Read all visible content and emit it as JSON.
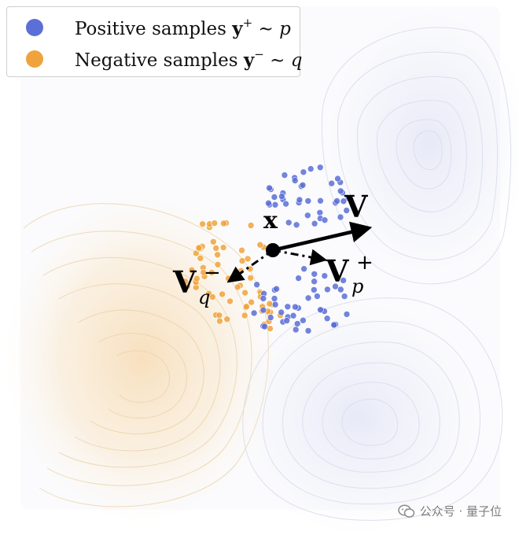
{
  "legend": {
    "positive": {
      "label": "Positive samples",
      "bold": "y",
      "sup": "+",
      "rel": "∼",
      "dist": "p",
      "color": "#5b6fd6"
    },
    "negative": {
      "label": "Negative samples",
      "bold": "y",
      "sup": "−",
      "rel": "∼",
      "dist": "q",
      "color": "#f0a33c"
    }
  },
  "labels": {
    "anchor": "x",
    "v_main": "V",
    "v_pos": "V",
    "v_pos_sub": "p",
    "v_pos_sup": "+",
    "v_neg": "V",
    "v_neg_sub": "q",
    "v_neg_sup": "−"
  },
  "watermark": {
    "text": "公众号 · 量子位",
    "icon": "wechat-icon"
  },
  "colors": {
    "positive": "#5b6fd6",
    "negative": "#f0a33c"
  }
}
